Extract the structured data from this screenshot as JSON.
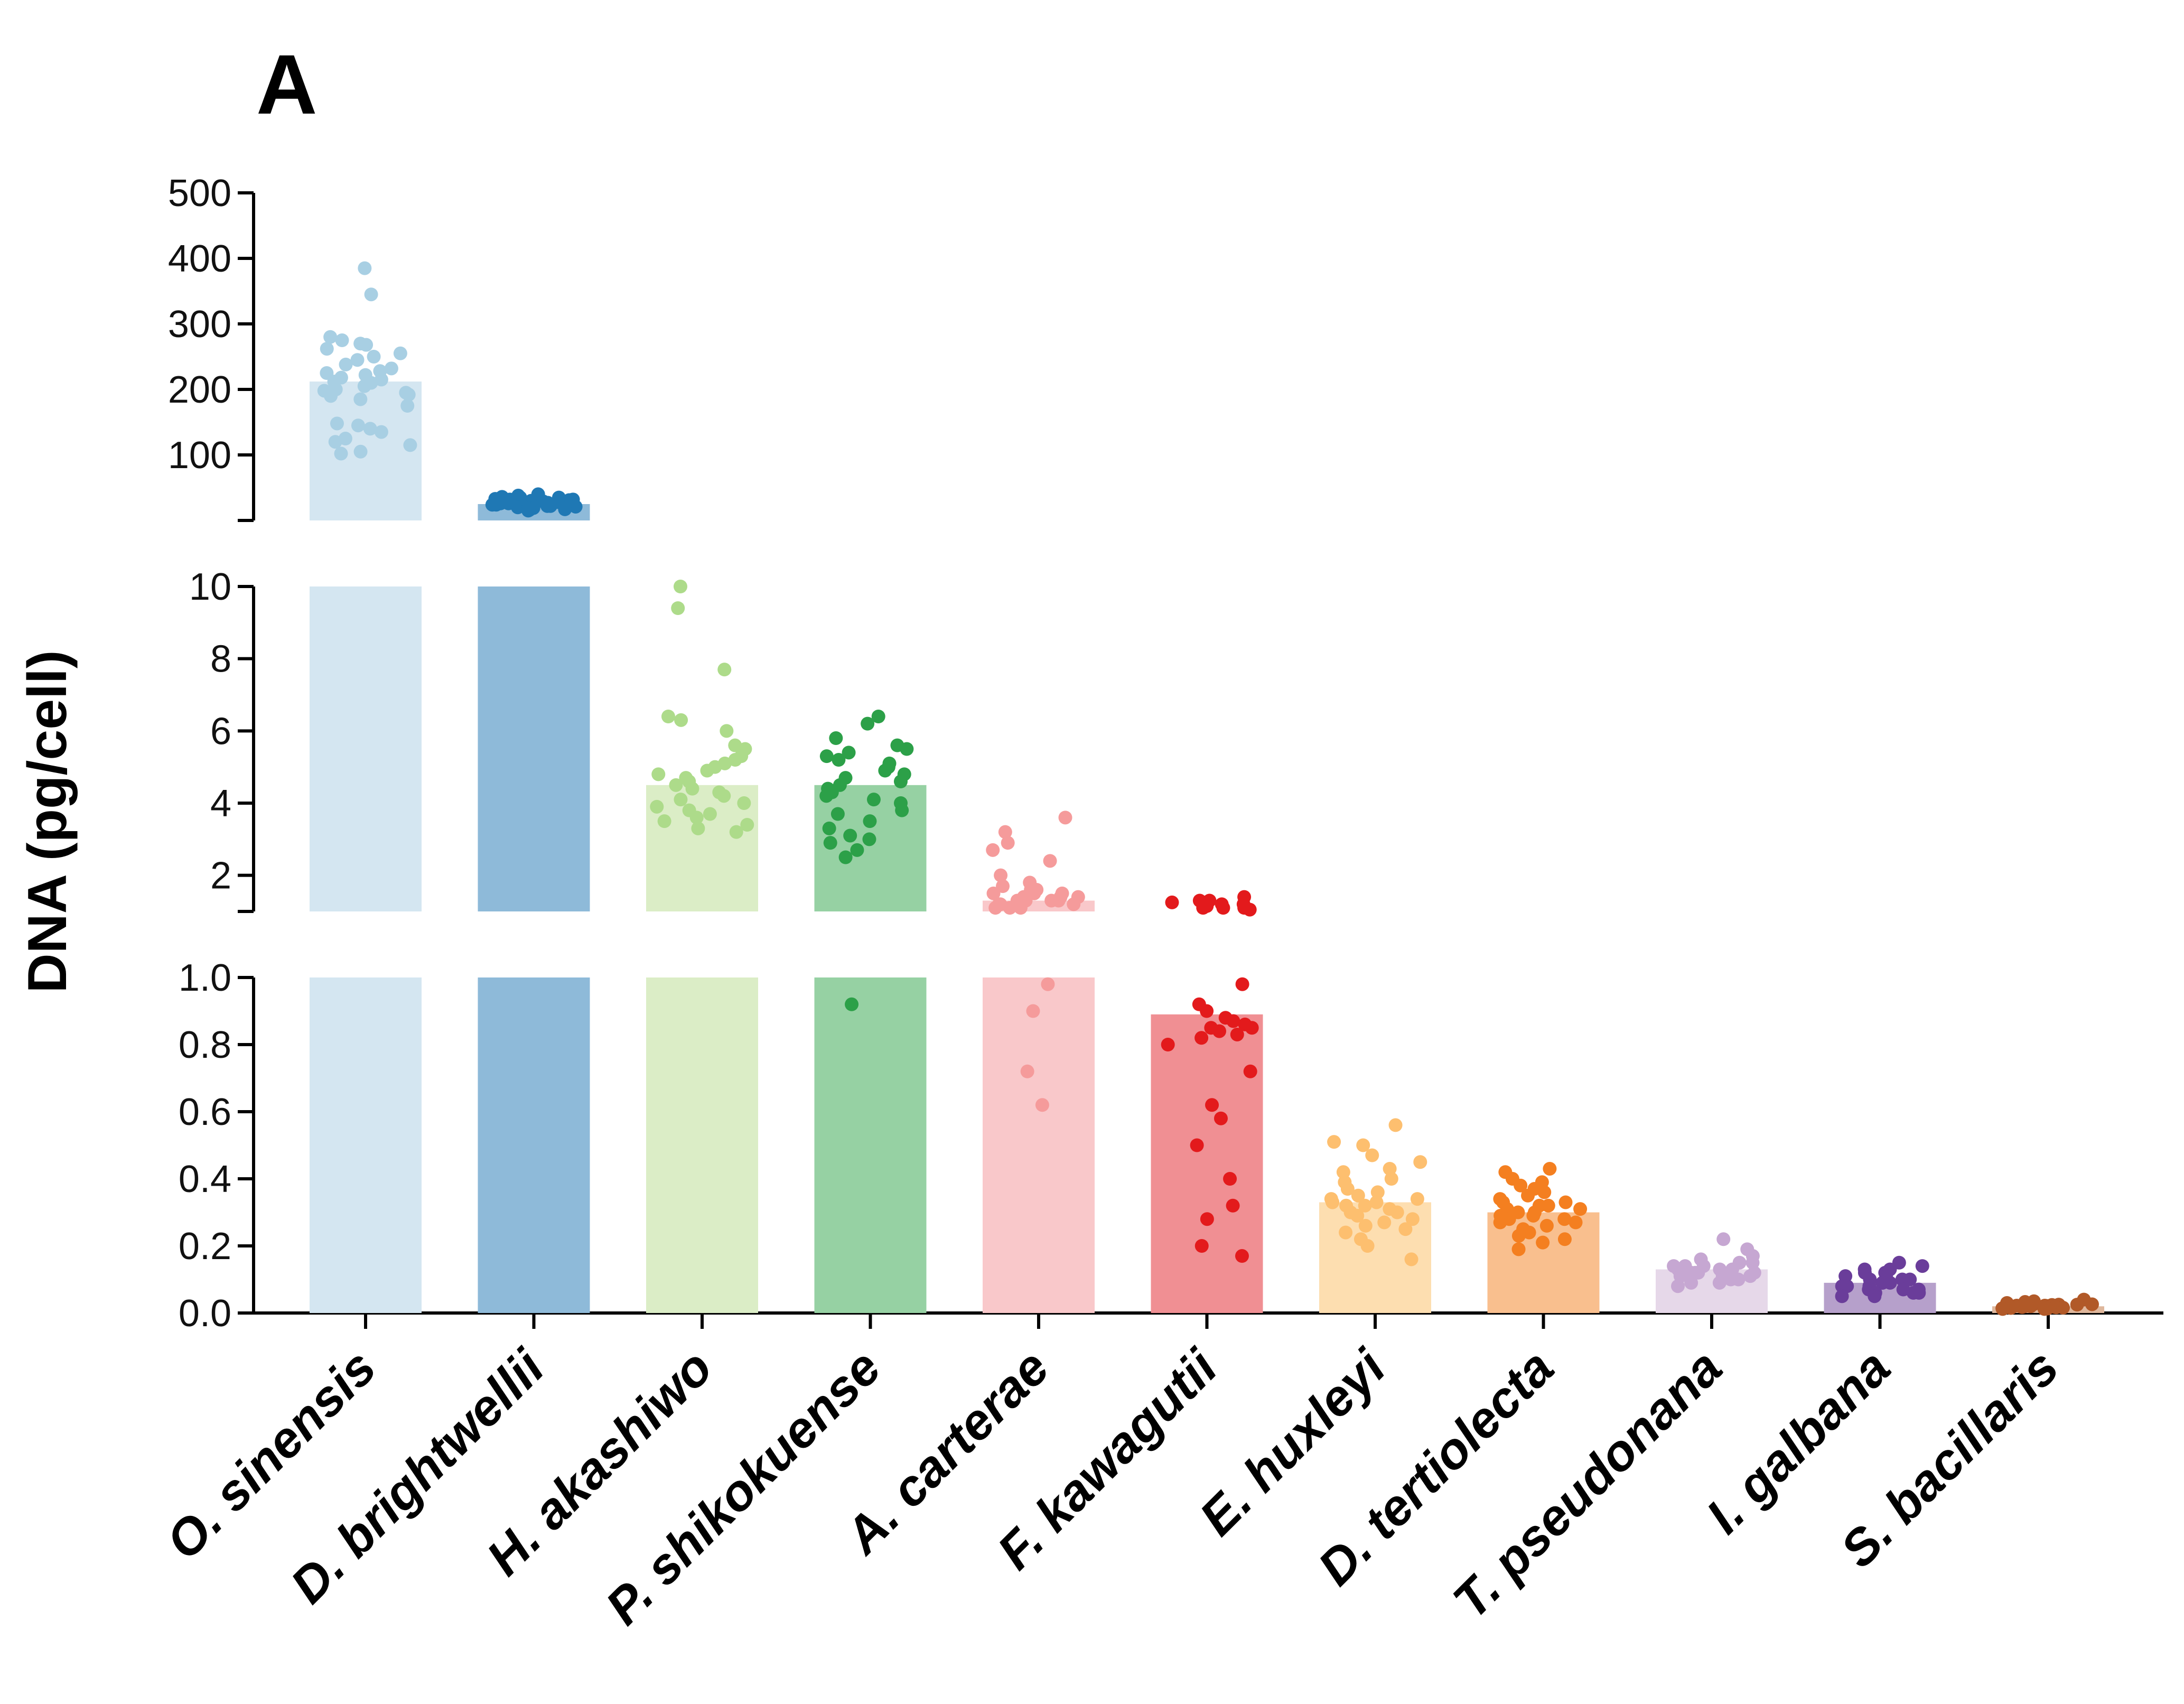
{
  "chart_data": {
    "type": "bar",
    "panel_label": "A",
    "title": "",
    "xlabel": "",
    "ylabel": "DNA (pg/cell)",
    "y_axis_broken": true,
    "y_segments": [
      {
        "name": "lower",
        "range": [
          0,
          1.0
        ],
        "ticks": [
          0.0,
          0.2,
          0.4,
          0.6,
          0.8,
          1.0
        ],
        "tick_labels": [
          "0.0",
          "0.2",
          "0.4",
          "0.6",
          "0.8",
          "1.0"
        ]
      },
      {
        "name": "middle",
        "range": [
          1,
          10
        ],
        "ticks": [
          2,
          4,
          6,
          8,
          10
        ],
        "tick_labels": [
          "2",
          "4",
          "6",
          "8",
          "10"
        ]
      },
      {
        "name": "upper",
        "range": [
          10,
          500
        ],
        "ticks": [
          100,
          200,
          300,
          400,
          500
        ],
        "tick_labels": [
          "100",
          "200",
          "300",
          "400",
          "500"
        ]
      }
    ],
    "categories": [
      "O. sinensis",
      "D. brightwellii",
      "H. akashiwo",
      "P. shikokuense",
      "A. carterae",
      "F. kawagutii",
      "E. huxleyi",
      "D. tertiolecta",
      "T. pseudonana",
      "I. galbana",
      "S. bacillaris"
    ],
    "series": [
      {
        "name": "O. sinensis",
        "mean": 212,
        "bar_color": "#d4e6f1",
        "point_color": "#a8cfe3",
        "points": [
          385,
          345,
          280,
          275,
          270,
          268,
          262,
          255,
          250,
          245,
          238,
          232,
          228,
          225,
          222,
          218,
          215,
          212,
          210,
          205,
          200,
          198,
          195,
          192,
          190,
          185,
          175,
          148,
          145,
          140,
          135,
          125,
          120,
          115,
          105,
          102
        ]
      },
      {
        "name": "D. brightwellii",
        "mean": 25,
        "bar_color": "#8ebad9",
        "point_color": "#1f78b4",
        "points": [
          40,
          38,
          36,
          35,
          35,
          34,
          33,
          32,
          32,
          31,
          30,
          30,
          29,
          28,
          28,
          27,
          26,
          26,
          25,
          24,
          24,
          23,
          22,
          22,
          21,
          20,
          20,
          19,
          18,
          17,
          16,
          15
        ]
      },
      {
        "name": "H. akashiwo",
        "mean": 4.5,
        "bar_color": "#dbedc6",
        "point_color": "#addb8a",
        "points": [
          10.0,
          9.4,
          7.7,
          6.4,
          6.3,
          6.0,
          5.6,
          5.5,
          5.3,
          5.2,
          5.1,
          5.0,
          4.9,
          4.8,
          4.7,
          4.6,
          4.5,
          4.4,
          4.3,
          4.2,
          4.1,
          4.0,
          3.9,
          3.8,
          3.7,
          3.6,
          3.5,
          3.4,
          3.3,
          3.2
        ]
      },
      {
        "name": "P. shikokuense",
        "mean": 4.5,
        "bar_color": "#96d1a3",
        "point_color": "#2ca048",
        "points": [
          6.4,
          6.2,
          5.8,
          5.6,
          5.5,
          5.4,
          5.3,
          5.2,
          5.1,
          5.0,
          4.9,
          4.8,
          4.7,
          4.6,
          4.5,
          4.4,
          4.3,
          4.2,
          4.1,
          4.0,
          3.8,
          3.7,
          3.5,
          3.3,
          3.1,
          3.0,
          2.9,
          2.7,
          2.5,
          0.92
        ]
      },
      {
        "name": "A. carterae",
        "mean": 1.3,
        "bar_color": "#f9c8ca",
        "point_color": "#f59b9b",
        "points": [
          3.6,
          3.2,
          2.9,
          2.7,
          2.4,
          2.0,
          1.8,
          1.7,
          1.6,
          1.6,
          1.5,
          1.5,
          1.5,
          1.4,
          1.4,
          1.4,
          1.3,
          1.3,
          1.3,
          1.3,
          1.2,
          1.2,
          1.2,
          1.2,
          1.1,
          1.1,
          1.1,
          0.98,
          0.9,
          0.72,
          0.62
        ]
      },
      {
        "name": "F. kawagutii",
        "mean": 0.89,
        "bar_color": "#f08f93",
        "point_color": "#e31a1c",
        "points": [
          1.4,
          1.3,
          1.3,
          1.25,
          1.2,
          1.2,
          1.15,
          1.1,
          1.1,
          1.1,
          1.05,
          0.98,
          0.92,
          0.9,
          0.88,
          0.87,
          0.86,
          0.85,
          0.85,
          0.84,
          0.83,
          0.82,
          0.8,
          0.72,
          0.62,
          0.58,
          0.5,
          0.4,
          0.32,
          0.28,
          0.2,
          0.17
        ]
      },
      {
        "name": "E. huxleyi",
        "mean": 0.33,
        "bar_color": "#fddeb0",
        "point_color": "#fdbf6f",
        "points": [
          0.56,
          0.51,
          0.5,
          0.47,
          0.45,
          0.43,
          0.42,
          0.4,
          0.39,
          0.37,
          0.36,
          0.35,
          0.34,
          0.34,
          0.33,
          0.33,
          0.32,
          0.32,
          0.31,
          0.3,
          0.3,
          0.29,
          0.28,
          0.27,
          0.26,
          0.25,
          0.24,
          0.22,
          0.2,
          0.16
        ]
      },
      {
        "name": "D. tertiolecta",
        "mean": 0.3,
        "bar_color": "#f9bf8e",
        "point_color": "#f47f20",
        "points": [
          0.43,
          0.42,
          0.4,
          0.39,
          0.38,
          0.37,
          0.36,
          0.35,
          0.34,
          0.33,
          0.33,
          0.32,
          0.32,
          0.31,
          0.31,
          0.3,
          0.3,
          0.29,
          0.29,
          0.28,
          0.28,
          0.27,
          0.27,
          0.26,
          0.25,
          0.24,
          0.23,
          0.22,
          0.21,
          0.19
        ]
      },
      {
        "name": "T. pseudonana",
        "mean": 0.13,
        "bar_color": "#e6d8e9",
        "point_color": "#c6a7d2",
        "points": [
          0.22,
          0.19,
          0.17,
          0.16,
          0.15,
          0.15,
          0.14,
          0.14,
          0.14,
          0.13,
          0.13,
          0.13,
          0.12,
          0.12,
          0.12,
          0.12,
          0.11,
          0.11,
          0.11,
          0.1,
          0.1,
          0.09,
          0.09,
          0.08
        ]
      },
      {
        "name": "I. galbana",
        "mean": 0.09,
        "bar_color": "#b6a0cb",
        "point_color": "#6a3d9a",
        "points": [
          0.15,
          0.14,
          0.13,
          0.13,
          0.12,
          0.12,
          0.11,
          0.11,
          0.1,
          0.1,
          0.1,
          0.09,
          0.09,
          0.09,
          0.08,
          0.08,
          0.08,
          0.07,
          0.07,
          0.07,
          0.06,
          0.06,
          0.06,
          0.05,
          0.05
        ]
      },
      {
        "name": "S. bacillaris",
        "mean": 0.02,
        "bar_color": "#dfb79c",
        "point_color": "#b15928",
        "points": [
          0.04,
          0.035,
          0.033,
          0.03,
          0.03,
          0.028,
          0.027,
          0.026,
          0.025,
          0.025,
          0.024,
          0.023,
          0.022,
          0.022,
          0.021,
          0.02,
          0.02,
          0.019,
          0.018,
          0.018,
          0.017,
          0.016,
          0.015,
          0.015,
          0.014,
          0.013,
          0.012,
          0.012
        ]
      }
    ]
  }
}
